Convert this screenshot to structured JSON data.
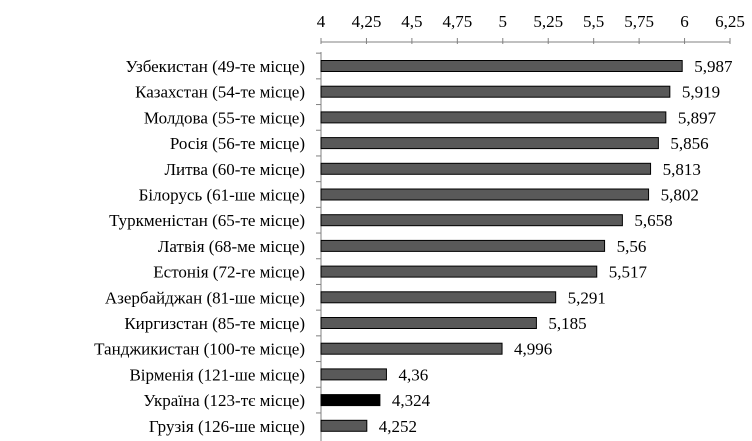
{
  "chart_data": {
    "type": "bar",
    "orientation": "horizontal",
    "xlim": [
      4,
      6.25
    ],
    "x_ticks": [
      "4",
      "4,25",
      "4,5",
      "4,75",
      "5",
      "5,25",
      "5,5",
      "5,75",
      "6",
      "6,25"
    ],
    "x_axis_position": "top",
    "grid": false,
    "categories": [
      "Узбекистан (49-те місце)",
      "Казахстан (54-те місце)",
      "Молдова (55-те місце)",
      "Росія (56-те місце)",
      "Литва (60-те місце)",
      "Білорусь (61-ше місце)",
      "Туркменістан (65-те місце)",
      "Латвія (68-ме місце)",
      "Естонія (72-ге місце)",
      "Азербайджан (81-ше місце)",
      "Киргизстан (85-те місце)",
      "Танджикистан (100-те місце)",
      "Вірменія (121-ше місце)",
      "Україна (123-тє місце)",
      "Грузія (126-ше місце)"
    ],
    "values": [
      5.987,
      5.919,
      5.897,
      5.856,
      5.813,
      5.802,
      5.658,
      5.56,
      5.517,
      5.291,
      5.185,
      4.996,
      4.36,
      4.324,
      4.252
    ],
    "value_labels": [
      "5,987",
      "5,919",
      "5,897",
      "5,856",
      "5,813",
      "5,802",
      "5,658",
      "5,56",
      "5,517",
      "5,291",
      "5,185",
      "4,996",
      "4,36",
      "4,324",
      "4,252"
    ],
    "colors": {
      "default_bar": "#595959",
      "highlight_bar": "#000000",
      "bar_border": "#000000"
    },
    "highlight_index": 13
  }
}
